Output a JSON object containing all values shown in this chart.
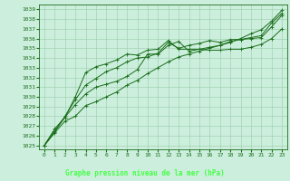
{
  "x": [
    0,
    1,
    2,
    3,
    4,
    5,
    6,
    7,
    8,
    9,
    10,
    11,
    12,
    13,
    14,
    15,
    16,
    17,
    18,
    19,
    20,
    21,
    22,
    23
  ],
  "line1": [
    1025.0,
    1026.3,
    1027.5,
    1028.0,
    1029.1,
    1029.5,
    1030.0,
    1030.5,
    1031.2,
    1031.7,
    1032.4,
    1033.0,
    1033.6,
    1034.1,
    1034.4,
    1034.7,
    1035.0,
    1035.3,
    1035.6,
    1036.0,
    1036.5,
    1036.9,
    1037.8,
    1038.9
  ],
  "line2": [
    1025.0,
    1026.7,
    1027.9,
    1029.2,
    1030.3,
    1031.0,
    1031.3,
    1031.6,
    1032.1,
    1032.8,
    1034.4,
    1034.4,
    1035.3,
    1035.7,
    1034.7,
    1034.9,
    1034.8,
    1034.8,
    1034.9,
    1034.9,
    1035.1,
    1035.4,
    1036.0,
    1037.0
  ],
  "line3": [
    1025.0,
    1026.5,
    1028.0,
    1029.7,
    1031.2,
    1031.9,
    1032.6,
    1033.0,
    1033.6,
    1034.0,
    1034.1,
    1034.5,
    1035.6,
    1035.0,
    1035.3,
    1035.5,
    1035.8,
    1035.6,
    1035.9,
    1035.9,
    1036.1,
    1036.3,
    1037.6,
    1038.6
  ],
  "line4": [
    1025.0,
    1026.4,
    1027.9,
    1030.0,
    1032.5,
    1033.1,
    1033.4,
    1033.8,
    1034.4,
    1034.3,
    1034.8,
    1034.9,
    1035.8,
    1034.9,
    1034.9,
    1034.9,
    1035.1,
    1035.3,
    1035.7,
    1035.9,
    1036.0,
    1036.1,
    1037.2,
    1038.4
  ],
  "line_color": "#1a6e1a",
  "bg_color": "#cceedd",
  "grid_color": "#99ccaa",
  "bottom_bar_color": "#1a6e1a",
  "text_color": "#1a6e1a",
  "bottom_text_color": "#00cc00",
  "ylabel_values": [
    1025,
    1026,
    1027,
    1028,
    1029,
    1030,
    1031,
    1032,
    1033,
    1034,
    1035,
    1036,
    1037,
    1038,
    1039
  ],
  "ylim": [
    1024.6,
    1039.5
  ],
  "xlim": [
    -0.5,
    23.5
  ],
  "xlabel": "Graphe pression niveau de la mer (hPa)"
}
